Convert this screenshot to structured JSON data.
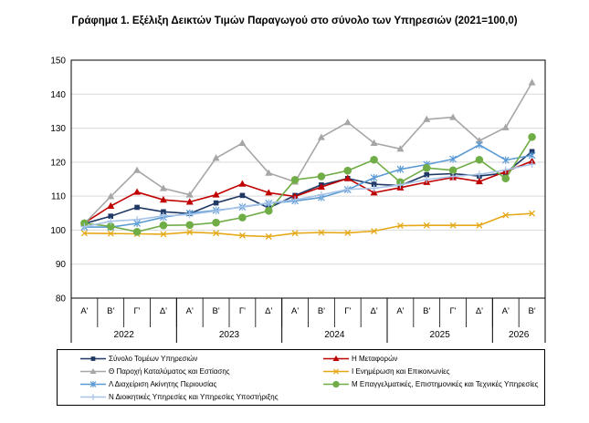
{
  "chart_data": {
    "type": "line",
    "title": "Γράφημα 1. Εξέλιξη Δεικτών Τιμών Παραγωγού στο σύνολο των Υπηρεσιών (2021=100,0)",
    "xlabel": "",
    "ylabel": "",
    "ylim": [
      80,
      150
    ],
    "yticks": [
      80,
      90,
      100,
      110,
      120,
      130,
      140,
      150
    ],
    "grid": true,
    "legend_position": "bottom",
    "categories": [
      "Α'",
      "Β'",
      "Γ'",
      "Δ'",
      "Α'",
      "Β'",
      "Γ'",
      "Δ'",
      "Α'",
      "Β'",
      "Γ'",
      "Δ'",
      "Α'",
      "Β'",
      "Γ'",
      "Δ'",
      "Α'",
      "Β'"
    ],
    "years": [
      {
        "label": "2022",
        "start": 0,
        "end": 3
      },
      {
        "label": "2023",
        "start": 4,
        "end": 7
      },
      {
        "label": "2024",
        "start": 8,
        "end": 11
      },
      {
        "label": "2025",
        "start": 12,
        "end": 15
      },
      {
        "label": "2026",
        "start": 16,
        "end": 17
      }
    ],
    "series": [
      {
        "name": "Σύνολο Τομέων Υπηρεσιών",
        "color": "#1f3864",
        "marker": "square",
        "values": [
          101.9,
          104.1,
          106.7,
          105.4,
          104.9,
          108.0,
          110.2,
          106.5,
          110.2,
          113.3,
          115.2,
          113.5,
          113.1,
          116.3,
          116.6,
          115.9,
          116.8,
          123.1
        ]
      },
      {
        "name": "Η Μεταφορών",
        "color": "#c00000",
        "marker": "triangle",
        "values": [
          102.1,
          107.1,
          111.2,
          108.9,
          108.3,
          110.4,
          113.6,
          111.0,
          109.9,
          112.7,
          115.2,
          111.0,
          112.5,
          114.1,
          115.5,
          114.3,
          117.2,
          120.3
        ]
      },
      {
        "name": "Θ Παροχή Καταλύματος και Εστίασης",
        "color": "#a6a6a6",
        "marker": "triangle",
        "values": [
          101.9,
          109.9,
          117.6,
          112.3,
          110.4,
          121.2,
          125.6,
          116.8,
          114.2,
          127.3,
          131.7,
          125.6,
          123.9,
          132.6,
          133.2,
          126.3,
          130.2,
          143.4
        ]
      },
      {
        "name": "Ι Ενημέρωση και Επικοινωνίες",
        "color": "#e6a817",
        "marker": "x",
        "values": [
          99.1,
          99.0,
          98.9,
          98.8,
          99.4,
          99.1,
          98.4,
          98.1,
          99.1,
          99.3,
          99.2,
          99.7,
          101.3,
          101.4,
          101.4,
          101.4,
          104.4,
          104.9
        ]
      },
      {
        "name": "Λ Διαχείριση Ακίνητης Περιουσίας",
        "color": "#5b9bd5",
        "marker": "star",
        "values": [
          100.9,
          100.9,
          102.0,
          103.8,
          105.0,
          105.8,
          106.8,
          107.9,
          108.6,
          109.6,
          111.9,
          115.4,
          117.9,
          119.3,
          120.9,
          125.1,
          120.6,
          122.0
        ]
      },
      {
        "name": "Μ Επαγγελματικές, Επιστημονικές και Τεχνικές Υπηρεσίες",
        "color": "#70ad47",
        "marker": "circle",
        "values": [
          102.0,
          101.1,
          99.5,
          101.4,
          101.5,
          102.2,
          103.7,
          105.7,
          114.8,
          115.8,
          117.5,
          120.7,
          114.1,
          118.3,
          117.6,
          120.7,
          115.2,
          127.4
        ]
      },
      {
        "name": "Ν Διοικητικές Υπηρεσίες και Υπηρεσίες Υποστήριξης",
        "color": "#a9c4e8",
        "marker": "plus",
        "values": [
          101.0,
          102.6,
          103.1,
          104.2,
          104.6,
          105.6,
          106.9,
          108.0,
          108.9,
          110.4,
          112.0,
          112.3,
          113.3,
          114.9,
          115.8,
          116.4,
          117.7,
          119.4
        ]
      }
    ]
  }
}
